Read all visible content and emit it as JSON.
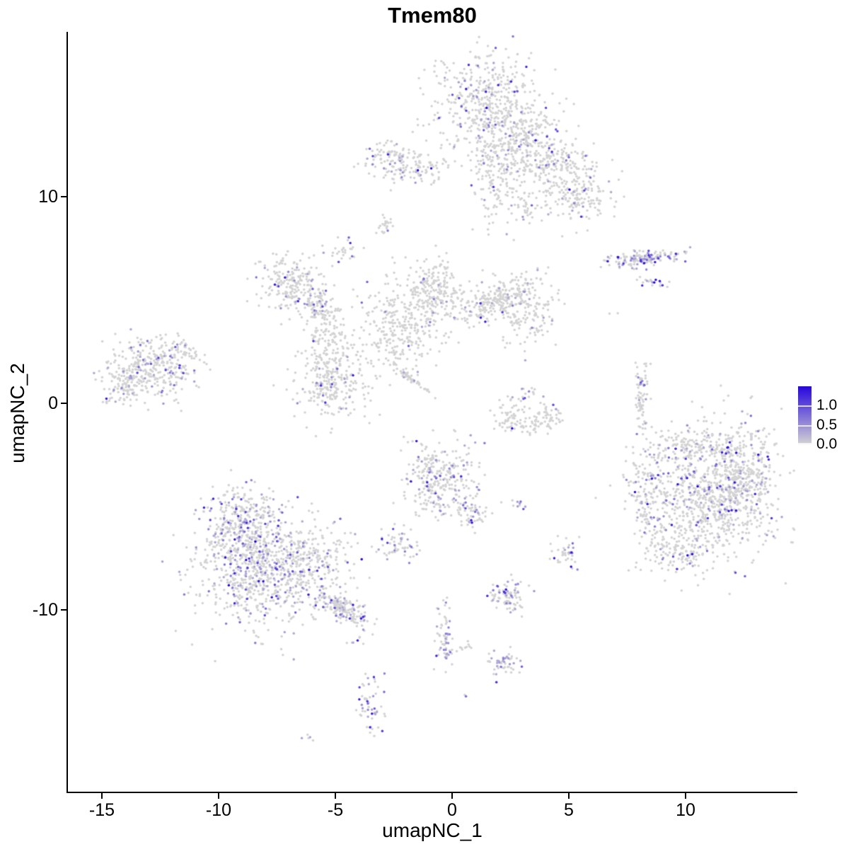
{
  "title": "Tmem80",
  "axes": {
    "x": {
      "label": "umapNC_1",
      "ticks": [
        -15,
        -10,
        -5,
        0,
        5,
        10
      ],
      "range": [
        -16.5,
        14.8
      ]
    },
    "y": {
      "label": "umapNC_2",
      "ticks": [
        10,
        0,
        -10
      ],
      "range": [
        -18.8,
        18.0
      ]
    }
  },
  "legend": {
    "ticks": [
      {
        "label": "1.0",
        "value": 1.0
      },
      {
        "label": "0.5",
        "value": 0.5
      },
      {
        "label": "0.0",
        "value": 0.0
      }
    ],
    "max_value": 1.5
  },
  "colors": {
    "low": "#d3d3d3",
    "high": "#2606dd",
    "background": "#ffffff"
  },
  "chart_data": {
    "type": "scatter",
    "title": "Tmem80",
    "xlabel": "umapNC_1",
    "ylabel": "umapNC_2",
    "xlim": [
      -16.5,
      14.8
    ],
    "ylim": [
      -18.8,
      18.0
    ],
    "grid": false,
    "legend_position": "right",
    "point_radius_px": 1.75,
    "value_scale": {
      "min": 0.0,
      "max": 1.5,
      "low_color": "#d3d3d3",
      "high_color": "#2606dd"
    },
    "description": "UMAP feature plot of Tmem80 expression; gray points = no expression, purple-blue points = expressing cells. Clusters given as gaussian blobs: center x/y (UMAP coords), sigma sx/sy, rotation deg, point count n, expressing fraction f.",
    "clusters": [
      {
        "x": 1.55,
        "y": 14.38,
        "sx": 1.21,
        "sy": 1.3,
        "rot": 0,
        "n": 500,
        "f": 0.09
      },
      {
        "x": 3.21,
        "y": 12.67,
        "sx": 0.91,
        "sy": 0.96,
        "rot": 0,
        "n": 250,
        "f": 0.08
      },
      {
        "x": 1.85,
        "y": 10.79,
        "sx": 0.55,
        "sy": 1.1,
        "rot": 0,
        "n": 130,
        "f": 0.06
      },
      {
        "x": 4.64,
        "y": 11.47,
        "sx": 0.91,
        "sy": 0.62,
        "rot": 0,
        "n": 160,
        "f": 0.08
      },
      {
        "x": 5.24,
        "y": 10.0,
        "sx": 0.79,
        "sy": 0.62,
        "rot": 0,
        "n": 150,
        "f": 0.1
      },
      {
        "x": 3.12,
        "y": 9.59,
        "sx": 0.3,
        "sy": 0.55,
        "rot": 0,
        "n": 40,
        "f": 0.05
      },
      {
        "x": -2.45,
        "y": 11.71,
        "sx": 0.67,
        "sy": 0.48,
        "rot": 0,
        "n": 130,
        "f": 0.12
      },
      {
        "x": -1.03,
        "y": 11.4,
        "sx": 0.55,
        "sy": 0.27,
        "rot": 0,
        "n": 50,
        "f": 0.06
      },
      {
        "x": -2.85,
        "y": 8.63,
        "sx": 0.27,
        "sy": 0.31,
        "rot": 0,
        "n": 22,
        "f": 0.06
      },
      {
        "x": -4.61,
        "y": 7.47,
        "sx": 0.27,
        "sy": 0.27,
        "rot": 0,
        "n": 26,
        "f": 0.15
      },
      {
        "x": -6.88,
        "y": 5.75,
        "sx": 0.79,
        "sy": 0.68,
        "rot": 0,
        "n": 230,
        "f": 0.13
      },
      {
        "x": -5.79,
        "y": 4.66,
        "sx": 0.36,
        "sy": 0.34,
        "rot": 0,
        "n": 50,
        "f": 0.08
      },
      {
        "x": -5.27,
        "y": 3.15,
        "sx": 0.48,
        "sy": 0.96,
        "rot": 0,
        "n": 140,
        "f": 0.04
      },
      {
        "x": -5.12,
        "y": 0.86,
        "sx": 0.79,
        "sy": 0.82,
        "rot": 0,
        "n": 240,
        "f": 0.08
      },
      {
        "x": -2.33,
        "y": 3.42,
        "sx": 0.91,
        "sy": 0.89,
        "rot": 0,
        "n": 260,
        "f": 0.03
      },
      {
        "x": -1.73,
        "y": 1.16,
        "sx": 0.55,
        "sy": 0.07,
        "rot": -42,
        "n": 55,
        "f": 0.07
      },
      {
        "x": -0.82,
        "y": 5.41,
        "sx": 0.82,
        "sy": 0.75,
        "rot": 0,
        "n": 260,
        "f": 0.04
      },
      {
        "x": 1.76,
        "y": 4.93,
        "sx": 0.85,
        "sy": 0.32,
        "rot": 33,
        "n": 200,
        "f": 0.04
      },
      {
        "x": 3.21,
        "y": 4.62,
        "sx": 0.73,
        "sy": 0.82,
        "rot": 0,
        "n": 170,
        "f": 0.05
      },
      {
        "x": -12.91,
        "y": 1.71,
        "sx": 0.91,
        "sy": 0.75,
        "rot": 0,
        "n": 330,
        "f": 0.13
      },
      {
        "x": -14.06,
        "y": 0.75,
        "sx": 0.42,
        "sy": 0.48,
        "rot": 0,
        "n": 80,
        "f": 0.15
      },
      {
        "x": -11.55,
        "y": 2.57,
        "sx": 0.36,
        "sy": 0.34,
        "rot": 0,
        "n": 40,
        "f": 0.1
      },
      {
        "x": 8.2,
        "y": 7.0,
        "sx": 0.79,
        "sy": 0.17,
        "rot": 6,
        "n": 150,
        "f": 0.35
      },
      {
        "x": 8.7,
        "y": 5.9,
        "sx": 0.36,
        "sy": 0.17,
        "rot": 0,
        "n": 20,
        "f": 0.35
      },
      {
        "x": 8.09,
        "y": 0.24,
        "sx": 0.15,
        "sy": 0.85,
        "rot": 0,
        "n": 70,
        "f": 0.1
      },
      {
        "x": 8.2,
        "y": 1.0,
        "sx": 0.1,
        "sy": 0.15,
        "rot": 0,
        "n": 6,
        "f": 0.7
      },
      {
        "x": 2.33,
        "y": -0.55,
        "sx": 0.39,
        "sy": 0.34,
        "rot": 0,
        "n": 45,
        "f": 0.02
      },
      {
        "x": 3.24,
        "y": -0.99,
        "sx": 0.61,
        "sy": 0.27,
        "rot": 0,
        "n": 55,
        "f": 0.02
      },
      {
        "x": 4.18,
        "y": -0.55,
        "sx": 0.3,
        "sy": 0.34,
        "rot": 0,
        "n": 35,
        "f": 0.06
      },
      {
        "x": 3.12,
        "y": 0.48,
        "sx": 0.48,
        "sy": 0.27,
        "rot": 0,
        "n": 18,
        "f": 0.12
      },
      {
        "x": 11.09,
        "y": -4.45,
        "sx": 1.39,
        "sy": 1.58,
        "rot": 0,
        "n": 850,
        "f": 0.13
      },
      {
        "x": 12.52,
        "y": -3.6,
        "sx": 0.67,
        "sy": 1.1,
        "rot": 0,
        "n": 240,
        "f": 0.12
      },
      {
        "x": 8.52,
        "y": -4.45,
        "sx": 0.48,
        "sy": 1.37,
        "rot": 0,
        "n": 150,
        "f": 0.13
      },
      {
        "x": 9.79,
        "y": -7.26,
        "sx": 0.73,
        "sy": 0.48,
        "rot": 0,
        "n": 100,
        "f": 0.1
      },
      {
        "x": 10.64,
        "y": -1.99,
        "sx": 1.03,
        "sy": 0.41,
        "rot": 0,
        "n": 120,
        "f": 0.1
      },
      {
        "x": -0.42,
        "y": -3.7,
        "sx": 0.82,
        "sy": 0.92,
        "rot": 0,
        "n": 300,
        "f": 0.17
      },
      {
        "x": 0.88,
        "y": -5.48,
        "sx": 0.36,
        "sy": 0.31,
        "rot": 0,
        "n": 45,
        "f": 0.1
      },
      {
        "x": -0.97,
        "y": -2.6,
        "sx": 0.24,
        "sy": 0.24,
        "rot": 0,
        "n": 20,
        "f": 0.15
      },
      {
        "x": 2.85,
        "y": -5.0,
        "sx": 0.18,
        "sy": 0.17,
        "rot": 0,
        "n": 10,
        "f": 0.5
      },
      {
        "x": -2.27,
        "y": -6.85,
        "sx": 0.48,
        "sy": 0.38,
        "rot": 0,
        "n": 60,
        "f": 0.25
      },
      {
        "x": 4.88,
        "y": -7.26,
        "sx": 0.3,
        "sy": 0.38,
        "rot": 0,
        "n": 40,
        "f": 0.3
      },
      {
        "x": -8.91,
        "y": -5.55,
        "sx": 0.76,
        "sy": 0.75,
        "rot": 0,
        "n": 260,
        "f": 0.22
      },
      {
        "x": -8.45,
        "y": -7.88,
        "sx": 1.33,
        "sy": 1.37,
        "rot": 0,
        "n": 700,
        "f": 0.22
      },
      {
        "x": -6.27,
        "y": -7.88,
        "sx": 1.0,
        "sy": 0.99,
        "rot": 0,
        "n": 300,
        "f": 0.12
      },
      {
        "x": -4.79,
        "y": -9.9,
        "sx": 0.61,
        "sy": 0.27,
        "rot": -32,
        "n": 170,
        "f": 0.18
      },
      {
        "x": -4.18,
        "y": -11.51,
        "sx": 0.24,
        "sy": 0.14,
        "rot": 0,
        "n": 7,
        "f": 0.55
      },
      {
        "x": 2.33,
        "y": -9.42,
        "sx": 0.42,
        "sy": 0.38,
        "rot": 0,
        "n": 85,
        "f": 0.28
      },
      {
        "x": -0.36,
        "y": -11.06,
        "sx": 0.21,
        "sy": 0.82,
        "rot": 0,
        "n": 55,
        "f": 0.15
      },
      {
        "x": -0.2,
        "y": -11.9,
        "sx": 0.2,
        "sy": 0.2,
        "rot": 0,
        "n": 8,
        "f": 0.6
      },
      {
        "x": 0.64,
        "y": -11.88,
        "sx": 0.27,
        "sy": 0.14,
        "rot": 0,
        "n": 10,
        "f": 0.0
      },
      {
        "x": 2.3,
        "y": -12.64,
        "sx": 0.42,
        "sy": 0.31,
        "rot": 0,
        "n": 50,
        "f": 0.3
      },
      {
        "x": -3.48,
        "y": -14.55,
        "sx": 0.27,
        "sy": 0.75,
        "rot": 0,
        "n": 55,
        "f": 0.35
      },
      {
        "x": 0.48,
        "y": -14.11,
        "sx": 0.09,
        "sy": 0.1,
        "rot": 0,
        "n": 2,
        "f": 0.6
      },
      {
        "x": -6.15,
        "y": -16.13,
        "sx": 0.15,
        "sy": 0.1,
        "rot": 0,
        "n": 5,
        "f": 0.3
      },
      {
        "x": -2.85,
        "y": 6.16,
        "sx": 0.1,
        "sy": 0.1,
        "rot": 0,
        "n": 2,
        "f": 0.0
      },
      {
        "x": 2.21,
        "y": 2.84,
        "sx": 0.12,
        "sy": 0.12,
        "rot": 0,
        "n": 3,
        "f": 0.0
      },
      {
        "x": 0.06,
        "y": -1.37,
        "sx": 0.1,
        "sy": 0.1,
        "rot": 0,
        "n": 2,
        "f": 0.0
      },
      {
        "x": 6.82,
        "y": 4.32,
        "sx": 0.1,
        "sy": 0.1,
        "rot": 0,
        "n": 2,
        "f": 0.0
      },
      {
        "x": 12.85,
        "y": 0.31,
        "sx": 0.1,
        "sy": 0.1,
        "rot": 0,
        "n": 2,
        "f": 0.0
      },
      {
        "x": 13.91,
        "y": -1.99,
        "sx": 0.12,
        "sy": 0.12,
        "rot": 0,
        "n": 3,
        "f": 0.0
      },
      {
        "x": -2.0,
        "y": -1.71,
        "sx": 0.15,
        "sy": 0.12,
        "rot": 0,
        "n": 3,
        "f": 0.0
      }
    ]
  }
}
